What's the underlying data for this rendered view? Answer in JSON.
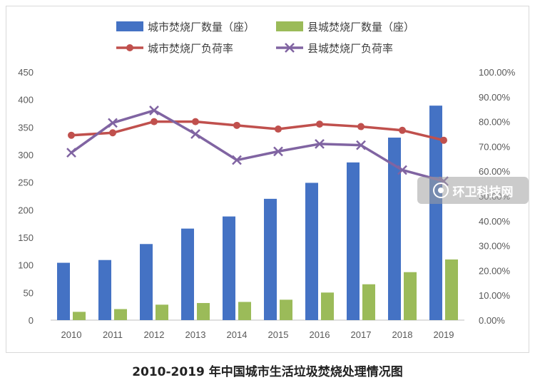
{
  "chart_data": {
    "type": "bar",
    "title": "2010-2019 年中国城市生活垃圾焚烧处理情况图",
    "categories": [
      "2010",
      "2011",
      "2012",
      "2013",
      "2014",
      "2015",
      "2016",
      "2017",
      "2018",
      "2019"
    ],
    "series": [
      {
        "name": "城市焚烧厂数量（座）",
        "type": "bar",
        "axis": "left",
        "color": "#4472c4",
        "values": [
          104,
          109,
          138,
          166,
          188,
          220,
          249,
          286,
          331,
          389
        ]
      },
      {
        "name": "县城焚烧厂数量（座）",
        "type": "bar",
        "axis": "left",
        "color": "#9bbb59",
        "values": [
          15,
          20,
          28,
          31,
          33,
          37,
          50,
          65,
          87,
          110
        ]
      },
      {
        "name": "城市焚烧厂负荷率",
        "type": "line",
        "axis": "right",
        "color": "#c0504d",
        "marker": "circle",
        "values": [
          74.5,
          75.5,
          80.0,
          80.0,
          78.5,
          77.0,
          79.0,
          78.0,
          76.5,
          72.5
        ]
      },
      {
        "name": "县城焚烧厂负荷率",
        "type": "line",
        "axis": "right",
        "color": "#8064a2",
        "marker": "x",
        "values": [
          67.5,
          79.5,
          84.5,
          75.0,
          64.5,
          68.0,
          71.0,
          70.5,
          60.5,
          56.0
        ]
      }
    ],
    "y_left": {
      "min": 0,
      "max": 450,
      "step": 50,
      "ticks": [
        "0",
        "50",
        "100",
        "150",
        "200",
        "250",
        "300",
        "350",
        "400",
        "450"
      ]
    },
    "y_right": {
      "min": 0,
      "max": 100,
      "step": 10,
      "ticks": [
        "0.00%",
        "10.00%",
        "20.00%",
        "30.00%",
        "40.00%",
        "50.00%",
        "60.00%",
        "70.00%",
        "80.00%",
        "90.00%",
        "100.00%"
      ]
    },
    "legend_position": "top",
    "grid": false
  },
  "watermark": {
    "text": "环卫科技网"
  }
}
